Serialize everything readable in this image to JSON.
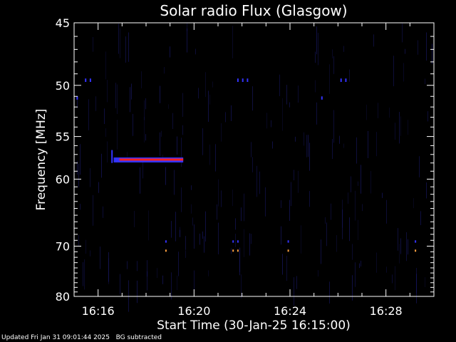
{
  "chart_data": {
    "type": "heatmap",
    "title": "Solar radio Flux (Glasgow)",
    "xlabel": "Start Time (30-Jan-25 16:15:00)",
    "ylabel": "Frequency [MHz]",
    "x_ticks": [
      "16:16",
      "16:20",
      "16:24",
      "16:28"
    ],
    "x_tick_minutes": [
      1,
      5,
      9,
      13
    ],
    "xlim_minutes_after_start": [
      0,
      15
    ],
    "y_ticks": [
      45,
      50,
      55,
      60,
      70,
      80
    ],
    "ylim": [
      45,
      80
    ],
    "y_scale": "reciprocal",
    "background": "#000000",
    "colors": {
      "low": "#1a1a6e",
      "mid": "#3333ff",
      "high": "#ff2020",
      "peak": "#ffa040"
    },
    "features": [
      {
        "t_start": 1.65,
        "t_end": 4.55,
        "f_start": 57.6,
        "f_end": 57.6,
        "intensity": "high"
      },
      {
        "t_start": 1.55,
        "t_end": 1.55,
        "f_start": 56.5,
        "f_end": 58.0,
        "intensity": "mid"
      },
      {
        "t_start": 0.45,
        "t_end": 0.45,
        "f_start": 49.4,
        "f_end": 49.7,
        "intensity": "mid"
      },
      {
        "t_start": 0.65,
        "t_end": 0.65,
        "f_start": 49.4,
        "f_end": 49.7,
        "intensity": "mid"
      },
      {
        "t_start": 0.1,
        "t_end": 0.1,
        "f_start": 51.0,
        "f_end": 51.3,
        "intensity": "mid"
      },
      {
        "t_start": 6.8,
        "t_end": 6.8,
        "f_start": 49.4,
        "f_end": 49.7,
        "intensity": "mid"
      },
      {
        "t_start": 7.0,
        "t_end": 7.0,
        "f_start": 49.4,
        "f_end": 49.7,
        "intensity": "mid"
      },
      {
        "t_start": 7.2,
        "t_end": 7.2,
        "f_start": 49.4,
        "f_end": 49.7,
        "intensity": "mid"
      },
      {
        "t_start": 10.3,
        "t_end": 10.3,
        "f_start": 51.0,
        "f_end": 51.3,
        "intensity": "mid"
      },
      {
        "t_start": 11.1,
        "t_end": 11.1,
        "f_start": 49.4,
        "f_end": 49.7,
        "intensity": "mid"
      },
      {
        "t_start": 11.3,
        "t_end": 11.3,
        "f_start": 49.4,
        "f_end": 49.7,
        "intensity": "mid"
      },
      {
        "t_start": 3.8,
        "t_end": 3.8,
        "f_start": 70.6,
        "f_end": 70.9,
        "intensity": "peak"
      },
      {
        "t_start": 6.6,
        "t_end": 6.6,
        "f_start": 70.6,
        "f_end": 70.9,
        "intensity": "peak"
      },
      {
        "t_start": 6.8,
        "t_end": 6.8,
        "f_start": 70.6,
        "f_end": 70.9,
        "intensity": "peak"
      },
      {
        "t_start": 8.9,
        "t_end": 8.9,
        "f_start": 70.6,
        "f_end": 70.9,
        "intensity": "peak"
      },
      {
        "t_start": 14.2,
        "t_end": 14.2,
        "f_start": 70.6,
        "f_end": 70.9,
        "intensity": "peak"
      },
      {
        "t_start": 3.8,
        "t_end": 3.8,
        "f_start": 69.0,
        "f_end": 69.4,
        "intensity": "mid"
      },
      {
        "t_start": 6.6,
        "t_end": 6.6,
        "f_start": 69.0,
        "f_end": 69.4,
        "intensity": "mid"
      },
      {
        "t_start": 6.8,
        "t_end": 6.8,
        "f_start": 69.0,
        "f_end": 69.4,
        "intensity": "mid"
      },
      {
        "t_start": 8.9,
        "t_end": 8.9,
        "f_start": 69.0,
        "f_end": 69.4,
        "intensity": "mid"
      },
      {
        "t_start": 14.2,
        "t_end": 14.2,
        "f_start": 69.0,
        "f_end": 69.4,
        "intensity": "mid"
      }
    ]
  },
  "footer": {
    "updated": "Updated Fri Jan 31 09:01:44 2025",
    "note": "BG subtracted"
  }
}
